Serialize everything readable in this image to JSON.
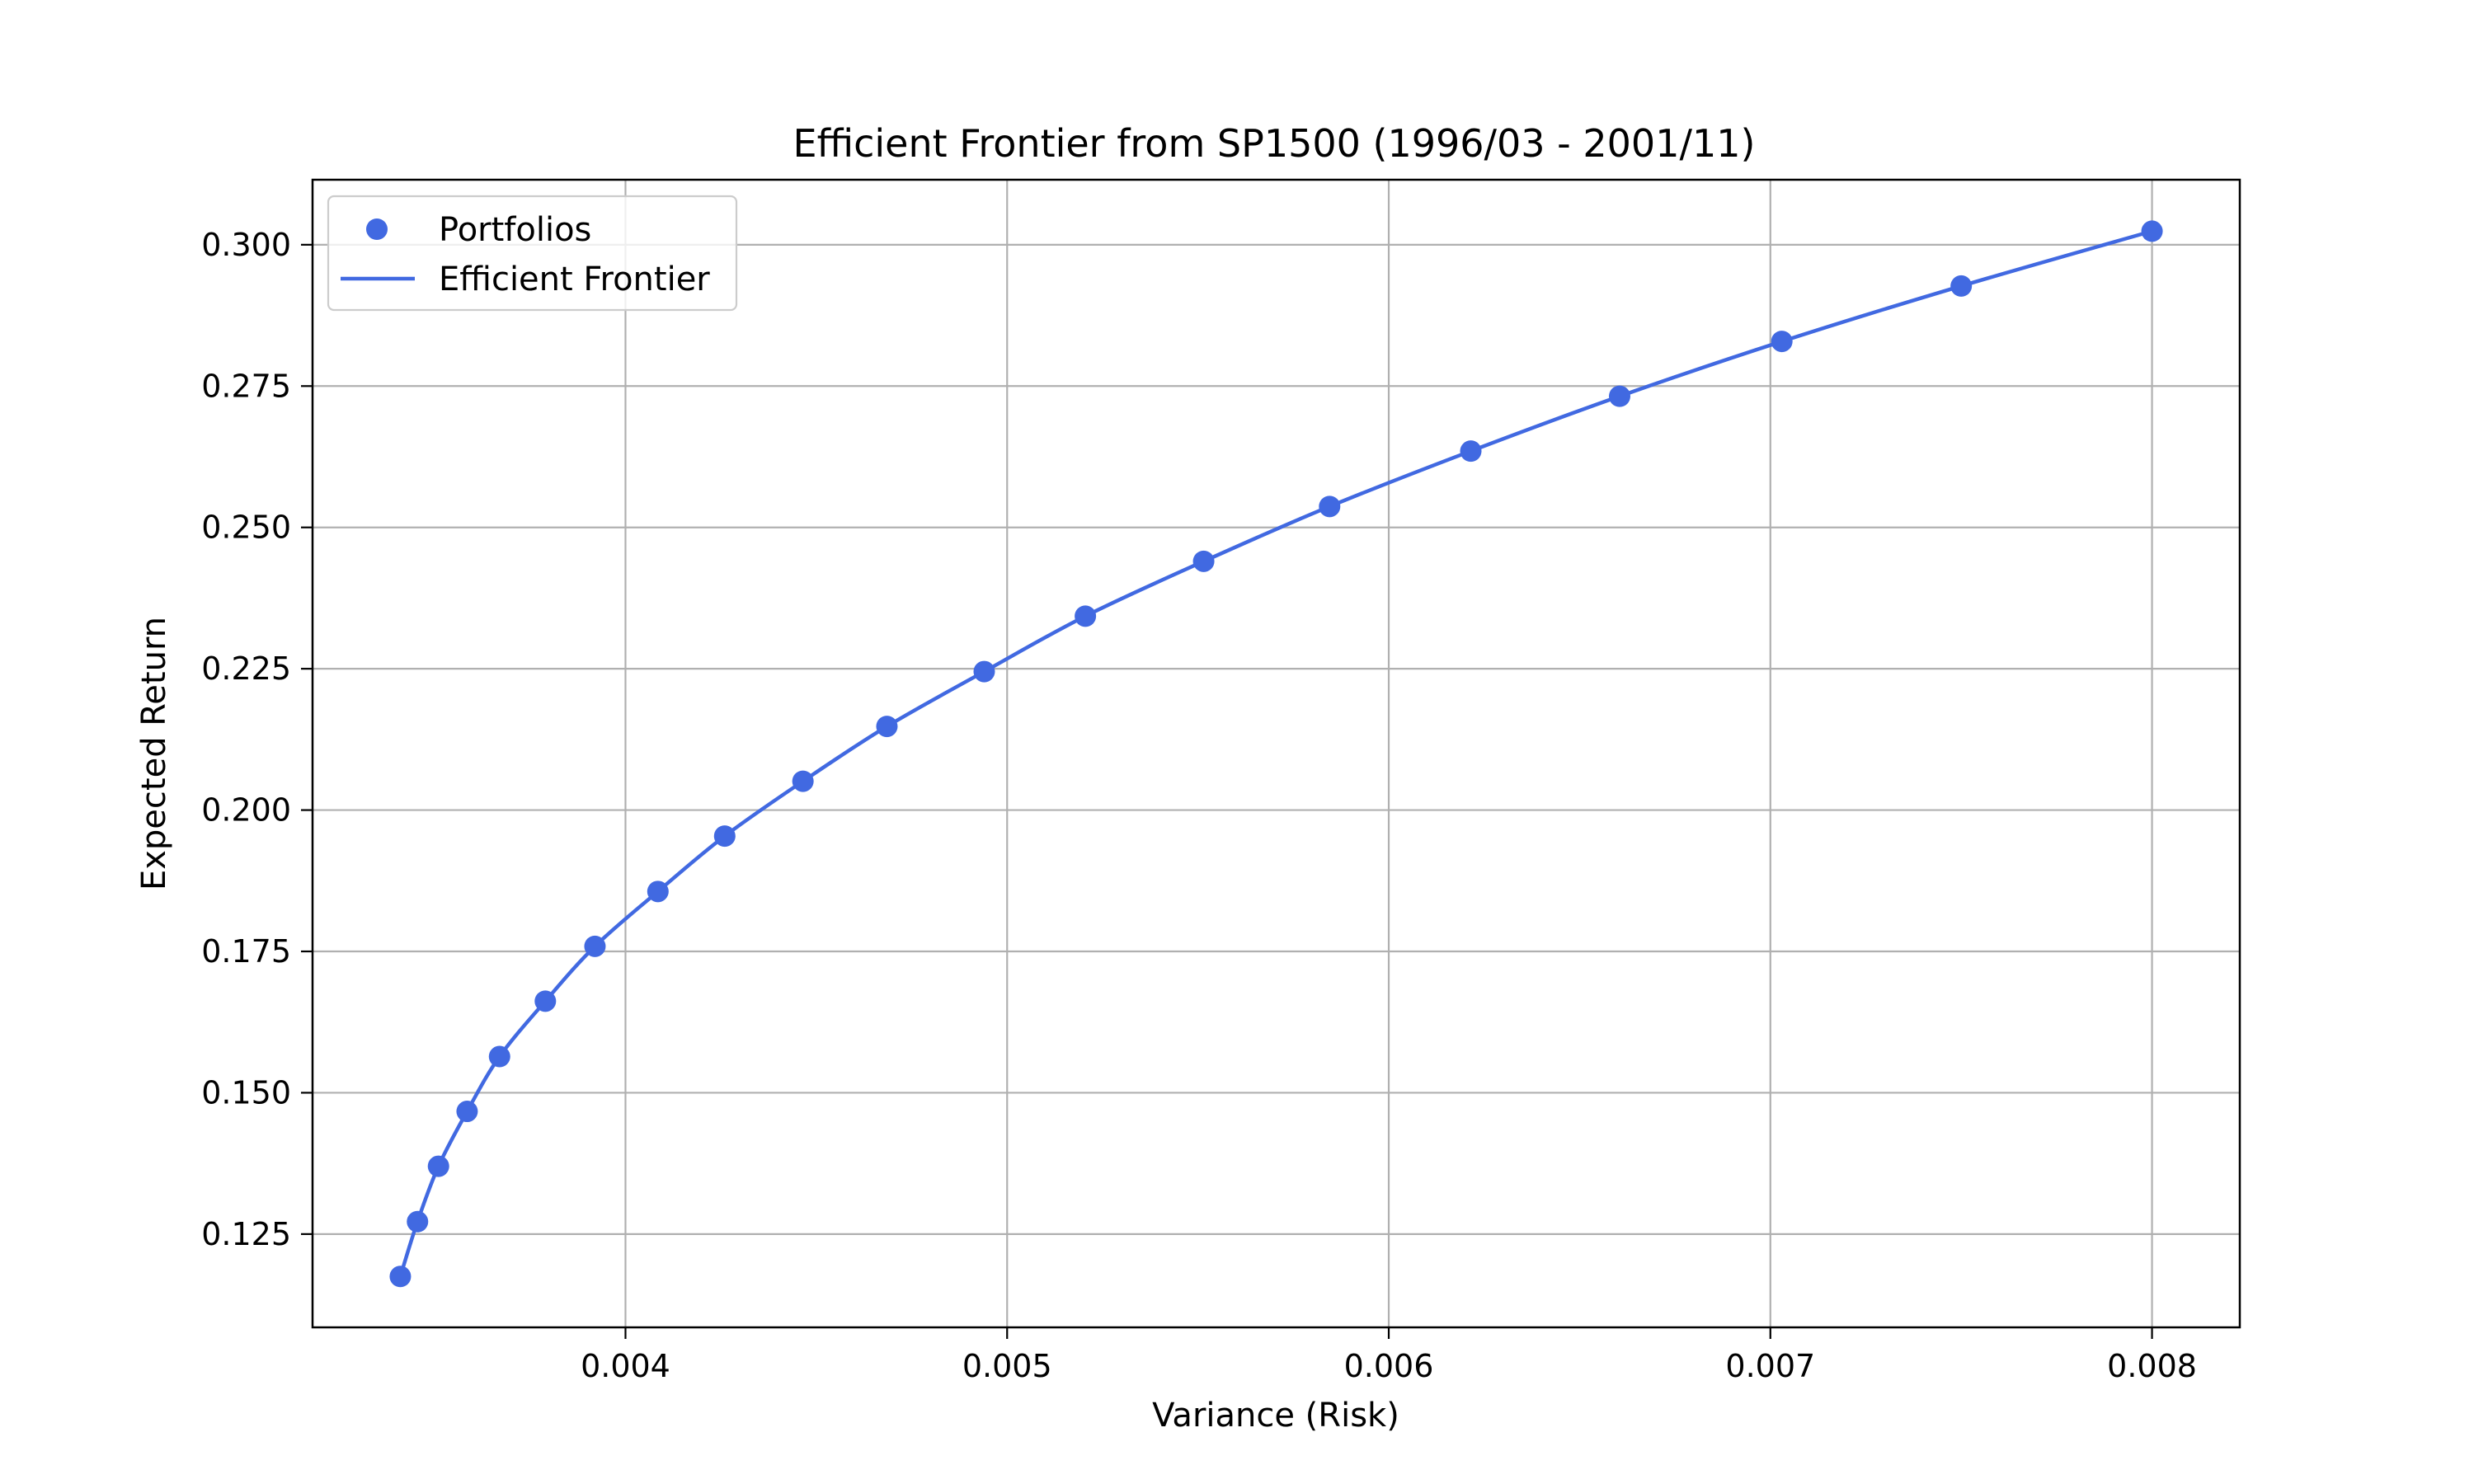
{
  "chart_data": {
    "type": "line",
    "title": "Efficient Frontier from SP1500 (1996/03 - 2001/11)",
    "xlabel": "Variance (Risk)",
    "ylabel": "Expected Return",
    "xlim": [
      0.00318,
      0.00823
    ],
    "ylim": [
      0.1085,
      0.3115
    ],
    "xticks": [
      "0.004",
      "0.005",
      "0.006",
      "0.007",
      "0.008"
    ],
    "xtick_values": [
      0.004,
      0.005,
      0.006,
      0.007,
      0.008
    ],
    "yticks": [
      "0.125",
      "0.150",
      "0.175",
      "0.200",
      "0.225",
      "0.250",
      "0.275",
      "0.300"
    ],
    "ytick_values": [
      0.125,
      0.15,
      0.175,
      0.2,
      0.225,
      0.25,
      0.275,
      0.3
    ],
    "grid": true,
    "legend_position": "top-left",
    "color": "#4169e1",
    "series": [
      {
        "name": "Portfolios",
        "kind": "scatter",
        "x": [
          0.00341,
          0.003455,
          0.00351,
          0.003585,
          0.00367,
          0.00379,
          0.00392,
          0.004085,
          0.00426,
          0.004465,
          0.004685,
          0.00494,
          0.005205,
          0.005515,
          0.005845,
          0.006215,
          0.006605,
          0.00703,
          0.0075,
          0.008
        ],
        "y": [
          0.1175,
          0.1272,
          0.137,
          0.1467,
          0.1564,
          0.1662,
          0.1759,
          0.1856,
          0.1954,
          0.2051,
          0.2148,
          0.2245,
          0.2343,
          0.244,
          0.2537,
          0.2635,
          0.2732,
          0.2829,
          0.2927,
          0.3024
        ]
      },
      {
        "name": "Efficient Frontier",
        "kind": "line",
        "x": [
          0.00341,
          0.003455,
          0.00351,
          0.003585,
          0.00367,
          0.00379,
          0.00392,
          0.004085,
          0.00426,
          0.004465,
          0.004685,
          0.00494,
          0.005205,
          0.005515,
          0.005845,
          0.006215,
          0.006605,
          0.00703,
          0.0075,
          0.008
        ],
        "y": [
          0.1175,
          0.1272,
          0.137,
          0.1467,
          0.1564,
          0.1662,
          0.1759,
          0.1856,
          0.1954,
          0.2051,
          0.2148,
          0.2245,
          0.2343,
          0.244,
          0.2537,
          0.2635,
          0.2732,
          0.2829,
          0.2927,
          0.3024
        ]
      }
    ]
  }
}
